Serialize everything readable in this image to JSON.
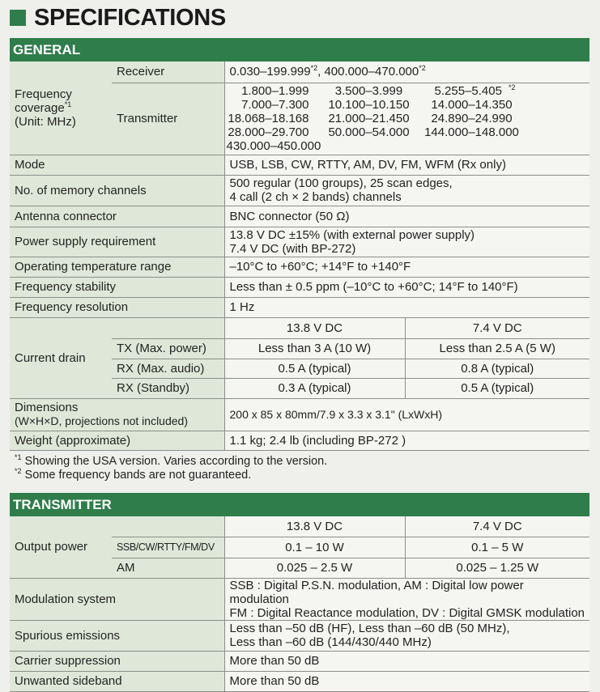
{
  "title": "SPECIFICATIONS",
  "general": {
    "header": "GENERAL",
    "freq_label": "Frequency coverage",
    "freq_label_sup": "*1",
    "freq_unit": "(Unit: MHz)",
    "receiver_label": "Receiver",
    "receiver_value_1": "0.030–199.999",
    "receiver_sup_1": "*2",
    "receiver_value_2": ", 400.000–470.000",
    "receiver_sup_2": "*2",
    "transmitter_label": "Transmitter",
    "tx_bands": [
      "1.800–1.999",
      "3.500–3.999",
      "5.255–5.405",
      "7.000–7.300",
      "10.100–10.150",
      "14.000–14.350",
      "18.068–18.168",
      "21.000–21.450",
      "24.890–24.990",
      "28.000–29.700",
      "50.000–54.000",
      "144.000–148.000"
    ],
    "tx_band_sup": "*2",
    "tx_band_last": "430.000–450.000",
    "rows": [
      {
        "label": "Mode",
        "value": "USB, LSB, CW, RTTY, AM, DV, FM, WFM (Rx only)"
      },
      {
        "label": "No. of memory channels",
        "value": "500 regular (100 groups), 25 scan edges,",
        "value2": "4 call (2 ch × 2 bands) channels"
      },
      {
        "label": "Antenna connector",
        "value": "BNC connector (50 Ω)"
      },
      {
        "label": "Power supply requirement",
        "value": "13.8 V DC ±15% (with external power supply)",
        "value2": "7.4 V DC (with BP-272)"
      },
      {
        "label": "Operating temperature range",
        "value": "–10°C to +60°C; +14°F to +140°F"
      },
      {
        "label": "Frequency stability",
        "value": "Less than ± 0.5 ppm (–10°C to +60°C; 14°F to 140°F)"
      },
      {
        "label": "Frequency resolution",
        "value": "1 Hz"
      }
    ],
    "current": {
      "label": "Current drain",
      "col1": "13.8 V DC",
      "col2": "7.4 V DC",
      "rows": [
        {
          "label": "TX (Max. power)",
          "v1": "Less than 3 A (10 W)",
          "v2": "Less than 2.5 A (5 W)"
        },
        {
          "label": "RX (Max. audio)",
          "v1": "0.5 A (typical)",
          "v2": "0.8 A (typical)"
        },
        {
          "label": "RX (Standby)",
          "v1": "0.3 A (typical)",
          "v2": "0.5 A (typical)"
        }
      ]
    },
    "dimensions_label": "Dimensions",
    "dimensions_label2": "(W×H×D, projections not included)",
    "dimensions_value": "200 x 85 x 80mm/7.9 x 3.3 x 3.1\" (LxWxH)",
    "weight_label": "Weight (approximate)",
    "weight_value": "1.1 kg; 2.4 lb (including BP-272 )"
  },
  "footnotes": [
    {
      "mark": "*1",
      "text": " Showing the USA version. Varies according to the version."
    },
    {
      "mark": "*2",
      "text": " Some frequency bands are not guaranteed."
    }
  ],
  "transmitter": {
    "header": "TRANSMITTER",
    "output": {
      "label": "Output power",
      "col1": "13.8 V DC",
      "col2": "7.4 V DC",
      "rows": [
        {
          "label": "SSB/CW/RTTY/FM/DV",
          "v1": "0.1 – 10 W",
          "v2": "0.1 – 5 W"
        },
        {
          "label": "AM",
          "v1": "0.025 – 2.5 W",
          "v2": "0.025 – 1.25 W"
        }
      ]
    },
    "rows": [
      {
        "label": "Modulation system",
        "value": "SSB : Digital P.S.N. modulation, AM : Digital low power modulation",
        "value2": "FM : Digital Reactance modulation, DV : Digital GMSK modulation"
      },
      {
        "label": "Spurious emissions",
        "value": "Less than –50 dB (HF), Less than –60 dB (50 MHz),",
        "value2": "Less than –60 dB (144/430/440 MHz)"
      },
      {
        "label": "Carrier suppression",
        "value": "More than 50 dB"
      },
      {
        "label": "Unwanted sideband",
        "value": "More than 50 dB"
      }
    ]
  },
  "colors": {
    "header_green": "#2f7d4b",
    "label_bg": "#dfe8d8",
    "value_bg": "#f5f5f2"
  }
}
